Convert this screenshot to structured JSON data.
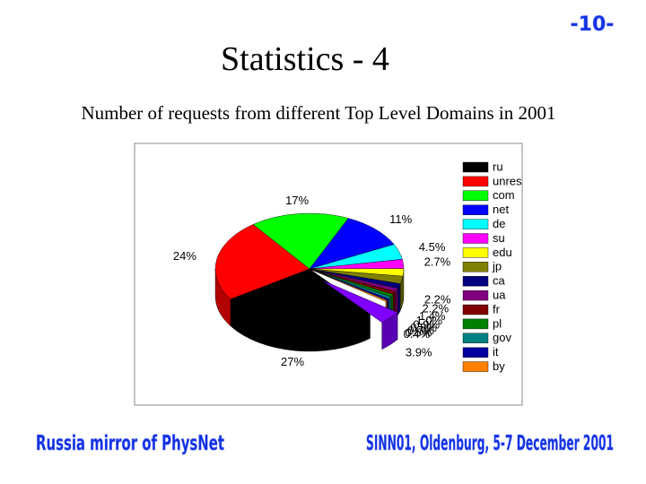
{
  "slide_number": "-10-",
  "slide_title": "Statistics - 4",
  "chart_data": {
    "type": "pie3d",
    "title": "Number of requests from different Top Level Domains in 2001",
    "categories": [
      "ru",
      "unres",
      "com",
      "net",
      "de",
      "su",
      "edu",
      "jp",
      "ca",
      "ua",
      "fr",
      "pl",
      "gov",
      "it",
      "by",
      null
    ],
    "values": [
      27,
      24,
      17,
      11,
      4.5,
      2.7,
      2.2,
      2.2,
      1.4,
      1.0,
      0.9,
      0.8,
      0.7,
      0.5,
      0.4,
      3.9
    ],
    "value_labels": [
      "27%",
      "24%",
      "17%",
      "11%",
      "4.5%",
      "2.7%",
      "2.2%",
      "2.2%",
      "1.4%",
      "1.0%",
      "0.9%",
      "0.8%",
      "0.7%",
      "0.5%",
      "0.4%",
      "3.9%"
    ],
    "colors": [
      "#000000",
      "#ff0000",
      "#00ff00",
      "#0000ff",
      "#00ffff",
      "#ff00ff",
      "#ffff00",
      "#808000",
      "#000080",
      "#800080",
      "#800000",
      "#008000",
      "#008080",
      "#0000a0",
      "#ff8000",
      "#8000ff"
    ],
    "legend": "right"
  },
  "footer": {
    "left": "Russia mirror of PhysNet",
    "right": "SINN01, Oldenburg, 5-7 December 2001"
  }
}
